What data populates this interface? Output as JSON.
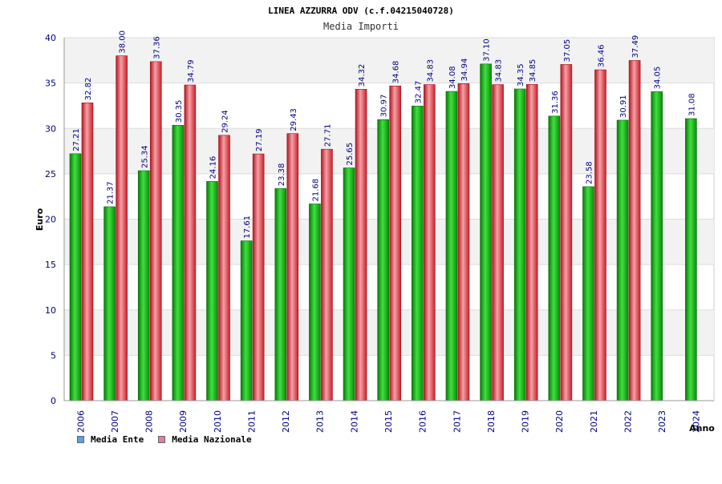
{
  "chart_data": {
    "type": "bar",
    "title": "LINEA AZZURRA ODV (c.f.04215040728)",
    "subtitle": "Media Importi",
    "ylabel": "Euro",
    "xlabel": "Anno",
    "ylim": [
      0,
      40
    ],
    "yticks": [
      "0",
      "5",
      "10",
      "15",
      "20",
      "25",
      "30",
      "35",
      "40"
    ],
    "categories": [
      "2006",
      "2007",
      "2008",
      "2009",
      "2010",
      "2011",
      "2012",
      "2013",
      "2014",
      "2015",
      "2016",
      "2017",
      "2018",
      "2019",
      "2020",
      "2021",
      "2022",
      "2023",
      "2024"
    ],
    "series": [
      {
        "name": "Media Ente",
        "values": [
          27.21,
          21.37,
          25.34,
          30.35,
          24.16,
          17.61,
          23.38,
          21.68,
          25.65,
          30.97,
          32.47,
          34.08,
          37.1,
          34.35,
          31.36,
          23.58,
          30.91,
          34.05,
          31.08
        ],
        "labels": [
          "27.21",
          "21.37",
          "25.34",
          "30.35",
          "24.16",
          "17.61",
          "23.38",
          "21.68",
          "25.65",
          "30.97",
          "32.47",
          "34.08",
          "37.10",
          "34.35",
          "31.36",
          "23.58",
          "30.91",
          "34.05",
          "31.08"
        ]
      },
      {
        "name": "Media Nazionale",
        "values": [
          32.82,
          38.0,
          37.36,
          34.79,
          29.24,
          27.19,
          29.43,
          27.71,
          34.32,
          34.68,
          34.83,
          34.94,
          34.83,
          34.85,
          37.05,
          36.46,
          37.49,
          null,
          null
        ],
        "labels": [
          "32.82",
          "38.00",
          "37.36",
          "34.79",
          "29.24",
          "27.19",
          "29.43",
          "27.71",
          "34.32",
          "34.68",
          "34.83",
          "34.94",
          "34.83",
          "34.85",
          "37.05",
          "36.46",
          "37.49",
          "",
          ""
        ]
      }
    ],
    "legend_position": "bottom-left",
    "grid": true
  },
  "colors": {
    "ente": "#12b812",
    "nazionale": "#e8343c",
    "legend_ente": "#5aa0e6",
    "legend_nazionale": "#e67aa8",
    "axis_text": "#000080",
    "band": "#f2f2f2"
  }
}
